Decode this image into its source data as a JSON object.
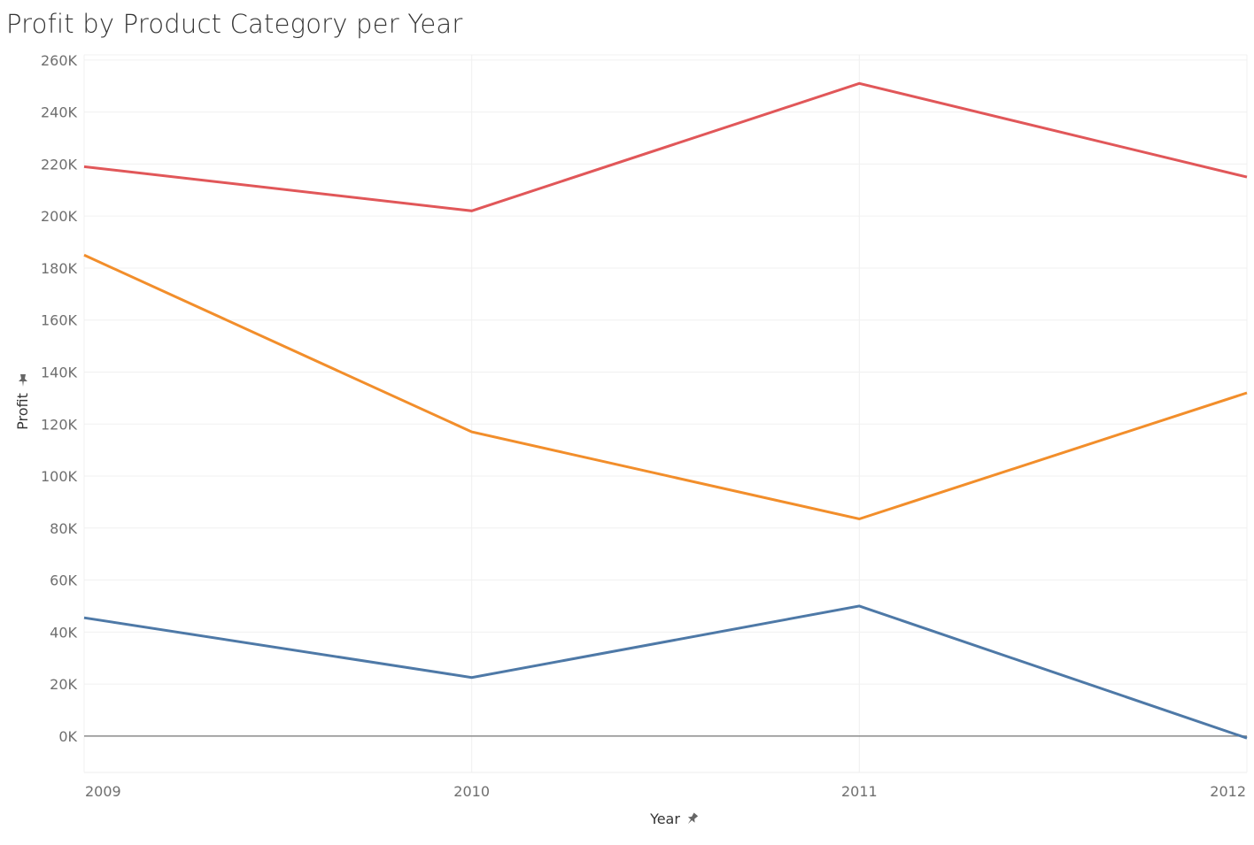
{
  "chart_data": {
    "type": "line",
    "title": "Profit by Product Category per Year",
    "xlabel": "Year",
    "ylabel": "Profit",
    "categories": [
      "2009",
      "2010",
      "2011",
      "2012"
    ],
    "y_tick_labels": [
      "0K",
      "20K",
      "40K",
      "60K",
      "80K",
      "100K",
      "120K",
      "140K",
      "160K",
      "180K",
      "200K",
      "220K",
      "240K",
      "260K"
    ],
    "y_ticks": [
      0,
      20000,
      40000,
      60000,
      80000,
      100000,
      120000,
      140000,
      160000,
      180000,
      200000,
      220000,
      240000,
      260000
    ],
    "ylim": [
      -14000,
      262000
    ],
    "grid": true,
    "series": [
      {
        "color": "#e15759",
        "values": [
          219000,
          202000,
          251000,
          215000
        ]
      },
      {
        "color": "#f28e2b",
        "values": [
          185000,
          117000,
          83500,
          132000
        ]
      },
      {
        "color": "#4e79a7",
        "values": [
          45500,
          22500,
          50000,
          -800
        ]
      }
    ]
  }
}
